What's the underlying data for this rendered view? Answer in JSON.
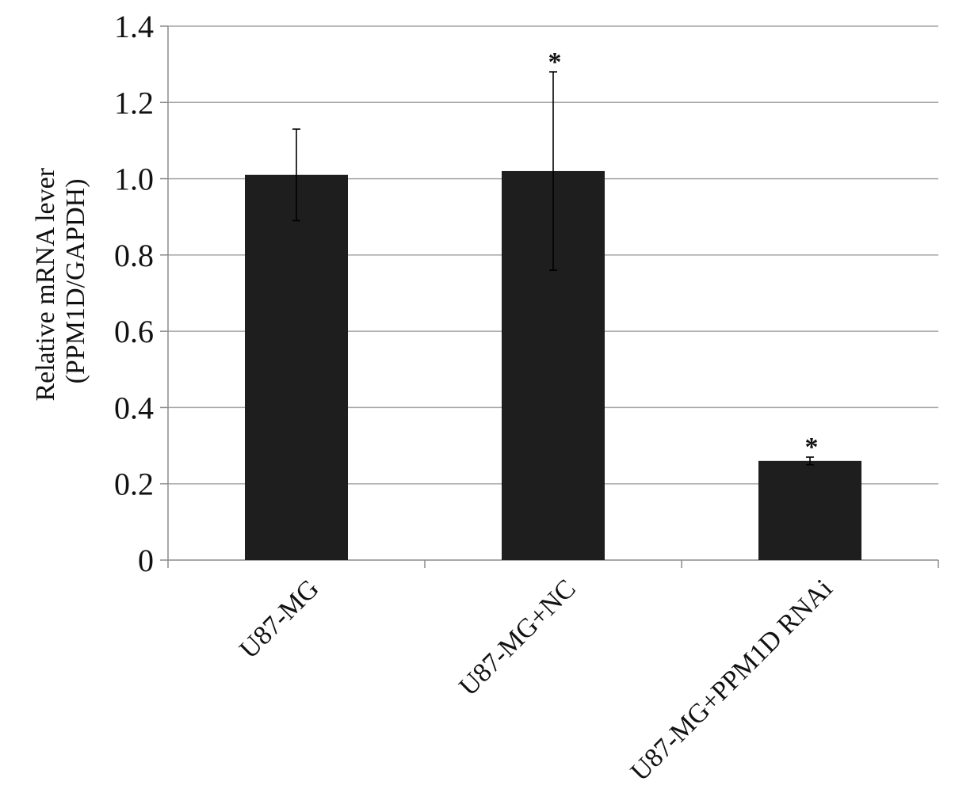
{
  "chart_data": {
    "type": "bar",
    "title": "",
    "xlabel": "",
    "ylabel_lines": [
      "Relative mRNA lever",
      "(PPM1D/GAPDH)"
    ],
    "categories": [
      "U87-MG",
      "U87-MG+NC",
      "U87-MG+PPM1D RNAi"
    ],
    "values": [
      1.01,
      1.02,
      0.26
    ],
    "error": [
      0.12,
      0.26,
      0.01
    ],
    "annotations": [
      "",
      "*",
      "*"
    ],
    "ylim": [
      0,
      1.4
    ],
    "yticks": [
      0,
      0.2,
      0.4,
      0.6,
      0.8,
      1.0,
      1.2,
      1.4
    ],
    "ytick_labels": [
      "0",
      "0.2",
      "0.4",
      "0.6",
      "0.8",
      "1.0",
      "1.2",
      "1.4"
    ],
    "grid": true,
    "bar_color": "#1e1e1e",
    "grid_color": "#a6a6a6",
    "axis_color": "#8c8c8c"
  }
}
